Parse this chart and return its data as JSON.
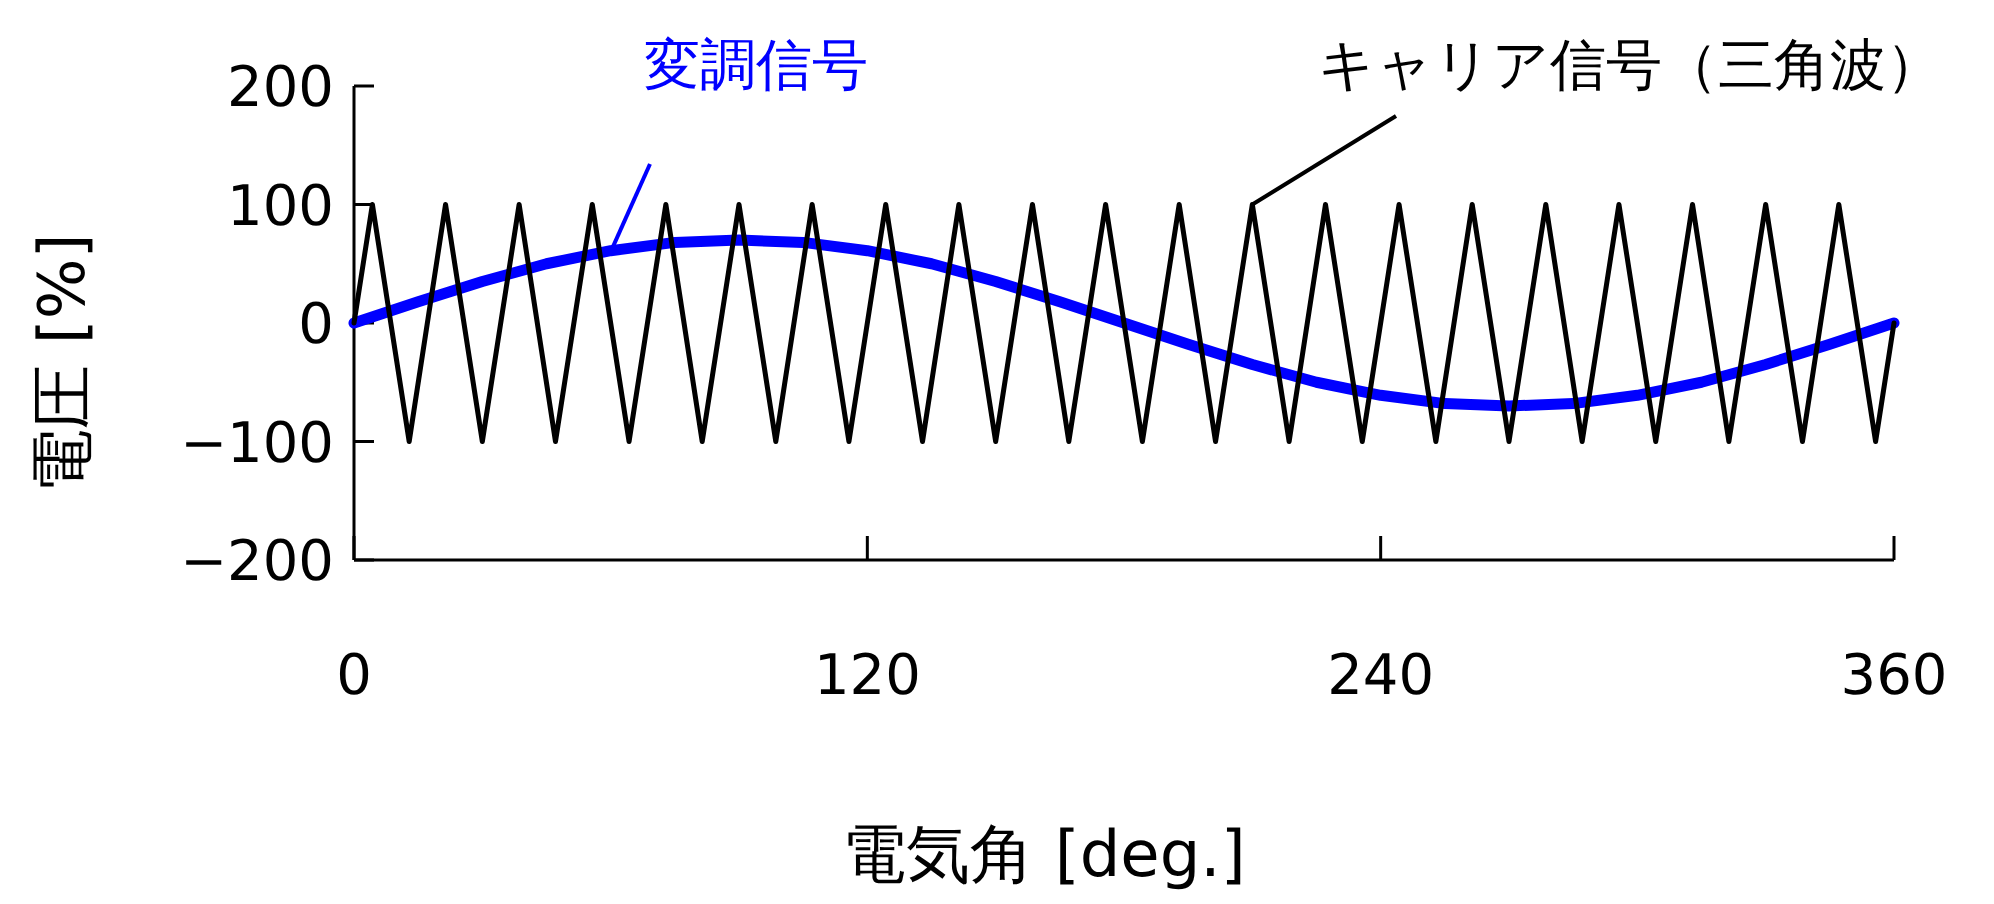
{
  "chart_data": {
    "type": "line",
    "xlabel": "電気角 [deg.]",
    "ylabel": "電圧 [%]",
    "xlim": [
      0,
      360
    ],
    "xticks": [
      0,
      120,
      240,
      360
    ],
    "ylim": [
      -200,
      200
    ],
    "yticks": [
      -200,
      -100,
      0,
      100,
      200
    ],
    "grid": false,
    "marker": "none",
    "line_style": "solid",
    "series": [
      {
        "color": "#0000ff",
        "x": [
          0,
          15,
          30,
          45,
          60,
          75,
          90,
          105,
          120,
          135,
          150,
          165,
          180,
          195,
          210,
          225,
          240,
          255,
          270,
          285,
          300,
          315,
          330,
          345,
          360
        ],
        "values": [
          0,
          18,
          35,
          50,
          61,
          68,
          70,
          68,
          61,
          50,
          35,
          18,
          0,
          -18,
          -35,
          -50,
          -61,
          -68,
          -70,
          -68,
          -61,
          -50,
          -35,
          -18,
          0
        ]
      },
      {
        "color": "#000000",
        "x": [
          0,
          4.3,
          12.9,
          21.4,
          30,
          38.6,
          47.1,
          55.7,
          64.3,
          72.9,
          81.4,
          90,
          98.6,
          107.1,
          115.7,
          124.3,
          132.9,
          141.4,
          150,
          158.6,
          167.1,
          175.7,
          184.3,
          192.9,
          201.4,
          210,
          218.6,
          227.1,
          235.7,
          244.3,
          252.9,
          261.4,
          270,
          278.6,
          287.1,
          295.7,
          304.3,
          312.9,
          321.4,
          330,
          338.6,
          347.1,
          355.7,
          360
        ],
        "values": [
          0,
          100,
          -100,
          100,
          -100,
          100,
          -100,
          100,
          -100,
          100,
          -100,
          100,
          -100,
          100,
          -100,
          100,
          -100,
          100,
          -100,
          100,
          -100,
          100,
          -100,
          100,
          -100,
          100,
          -100,
          100,
          -100,
          100,
          -100,
          100,
          -100,
          100,
          -100,
          100,
          -100,
          100,
          -100,
          100,
          -100,
          100,
          -100,
          0
        ]
      }
    ],
    "annotations": [
      {
        "text": "変調信号",
        "x": 60,
        "y": 60
      },
      {
        "text": "キャリア信号（三角波）",
        "x": 210,
        "y": 100
      }
    ]
  }
}
